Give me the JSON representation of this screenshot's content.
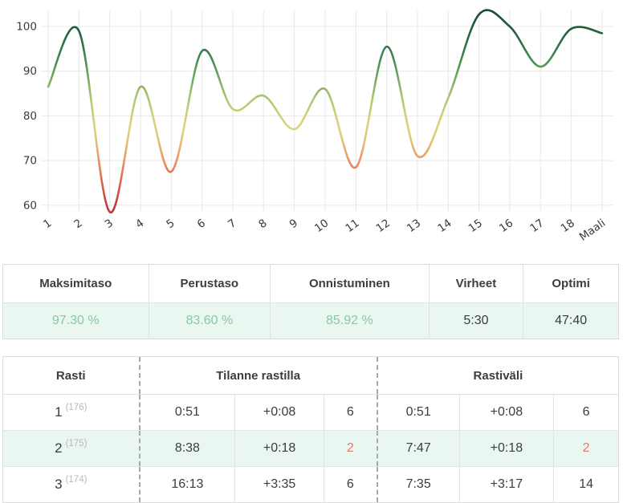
{
  "chart_data": {
    "type": "line",
    "title": "",
    "xlabel": "",
    "ylabel": "",
    "x": [
      "1",
      "2",
      "3",
      "4",
      "5",
      "6",
      "7",
      "8",
      "9",
      "10",
      "11",
      "12",
      "13",
      "14",
      "15",
      "16",
      "17",
      "18",
      "Maali"
    ],
    "values": [
      86.5,
      99,
      58.5,
      86.5,
      67.5,
      94.5,
      81.5,
      84.5,
      77,
      86,
      68.5,
      95.5,
      71,
      84,
      102.7,
      100,
      91,
      99.5,
      98.5
    ],
    "yticks": [
      60,
      70,
      80,
      90,
      100
    ],
    "ylim": [
      56,
      104
    ],
    "grid": true,
    "legend": false,
    "line_coloring": "by-value (high=green, low=red)",
    "color_stops": [
      {
        "value": 104,
        "color": "#174a30"
      },
      {
        "value": 100,
        "color": "#1f5a3a"
      },
      {
        "value": 96,
        "color": "#2d7347"
      },
      {
        "value": 92,
        "color": "#4a9156"
      },
      {
        "value": 88,
        "color": "#78ad63"
      },
      {
        "value": 84,
        "color": "#adc671"
      },
      {
        "value": 80,
        "color": "#d3d077"
      },
      {
        "value": 77,
        "color": "#ddd27b"
      },
      {
        "value": 74,
        "color": "#e7bd72"
      },
      {
        "value": 71,
        "color": "#eb9d67"
      },
      {
        "value": 68,
        "color": "#e67f57"
      },
      {
        "value": 64,
        "color": "#d95c43"
      },
      {
        "value": 60,
        "color": "#c03c38"
      },
      {
        "value": 56,
        "color": "#ae2f33"
      }
    ]
  },
  "summary_table": {
    "columns": [
      {
        "header": "Maksimitaso",
        "value": "97.30 %",
        "variant": "green"
      },
      {
        "header": "Perustaso",
        "value": "83.60 %",
        "variant": "green"
      },
      {
        "header": "Onnistuminen",
        "value": "85.92 %",
        "variant": "green"
      },
      {
        "header": "Virheet",
        "value": "5:30",
        "variant": "plain"
      },
      {
        "header": "Optimi",
        "value": "47:40",
        "variant": "plain"
      }
    ]
  },
  "splits_table": {
    "headers": {
      "control": "Rasti",
      "at_control": "Tilanne rastilla",
      "leg": "Rastiväli"
    },
    "rows": [
      {
        "control": "1",
        "code": "(176)",
        "cells": [
          "0:51",
          "+0:08",
          "6",
          "0:51",
          "+0:08",
          "6"
        ],
        "variants": [
          "plain",
          "plain",
          "plain",
          "plain",
          "plain",
          "plain"
        ]
      },
      {
        "control": "2",
        "code": "(175)",
        "cells": [
          "8:38",
          "+0:18",
          "2",
          "7:47",
          "+0:18",
          "2"
        ],
        "variants": [
          "plain",
          "plain",
          "red",
          "plain",
          "plain",
          "red"
        ]
      },
      {
        "control": "3",
        "code": "(174)",
        "cells": [
          "16:13",
          "+3:35",
          "6",
          "7:35",
          "+3:17",
          "14"
        ],
        "variants": [
          "plain",
          "plain",
          "plain",
          "plain",
          "plain",
          "plain"
        ]
      }
    ]
  },
  "colors": {
    "mint_row_bg": "#e9f7f0",
    "green_value_text": "#86c9a5",
    "red_rank_text": "#de7a6e",
    "table_border": "#e2e2e2",
    "dashed_divider": "#a8a8a8",
    "grid_line": "#e8e8e8"
  }
}
